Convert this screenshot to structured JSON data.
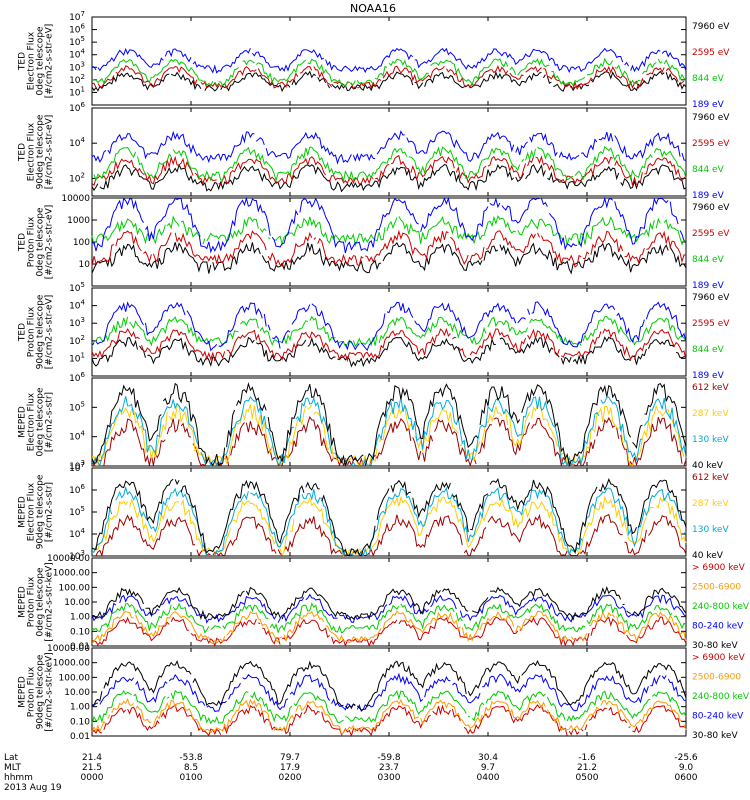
{
  "title": "NOAA16",
  "chart_data": {
    "type": "line",
    "title": "NOAA16",
    "x_ticks": [
      "0000",
      "0100",
      "0200",
      "0300",
      "0400",
      "0500",
      "0600"
    ],
    "x_hours": [
      0,
      1,
      2,
      3,
      4,
      5,
      6
    ],
    "footer": {
      "row_labels": [
        "Lat",
        "MLT",
        "hhmm"
      ],
      "date": "2013 Aug 19",
      "lat": [
        "21.4",
        "-53.8",
        "79.7",
        "-59.8",
        "30.4",
        "-1.6",
        "-25.6"
      ],
      "mlt": [
        "21.5",
        "8.5",
        "17.9",
        "23.7",
        "9.7",
        "21.2",
        "9.0"
      ]
    },
    "panels": [
      {
        "ylabel": [
          "TED",
          "Electron Flux",
          "0deg telescope",
          "[#/cm2-s-str-eV]"
        ],
        "yscale": "log",
        "ylim": [
          1,
          10000000.0
        ],
        "yticks": [
          {
            "v": 10,
            "b": "10",
            "e": "1"
          },
          {
            "v": 100,
            "b": "10",
            "e": "2"
          },
          {
            "v": 1000,
            "b": "10",
            "e": "3"
          },
          {
            "v": 10000,
            "b": "10",
            "e": "4"
          },
          {
            "v": 100000,
            "b": "10",
            "e": "5"
          },
          {
            "v": 1000000,
            "b": "10",
            "e": "6"
          },
          {
            "v": 10000000,
            "b": "10",
            "e": "7"
          }
        ],
        "series": [
          {
            "name": "7960 eV",
            "color": "#000000",
            "base": 25,
            "peak": 300
          },
          {
            "name": "2595 eV",
            "color": "#cc0000",
            "base": 40,
            "peak": 800
          },
          {
            "name": "844 eV",
            "color": "#00cc00",
            "base": 60,
            "peak": 3000
          },
          {
            "name": "189 eV",
            "color": "#0000ff",
            "base": 800,
            "peak": 20000
          }
        ]
      },
      {
        "ylabel": [
          "TED",
          "Electron Flux",
          "90deg telescope",
          "[#/cm2-s-str-eV]"
        ],
        "yscale": "log",
        "ylim": [
          10,
          1000000.0
        ],
        "yticks": [
          {
            "v": 100,
            "b": "10",
            "e": "2"
          },
          {
            "v": 10000,
            "b": "10",
            "e": "4"
          },
          {
            "v": 1000000,
            "b": "10",
            "e": "6"
          }
        ],
        "series": [
          {
            "name": "7960 eV",
            "color": "#000000",
            "base": 40,
            "peak": 400
          },
          {
            "name": "2595 eV",
            "color": "#cc0000",
            "base": 80,
            "peak": 1200
          },
          {
            "name": "844 eV",
            "color": "#00cc00",
            "base": 150,
            "peak": 4000
          },
          {
            "name": "189 eV",
            "color": "#0000ff",
            "base": 1500,
            "peak": 30000
          }
        ]
      },
      {
        "ylabel": [
          "TED",
          "Proton Flux",
          "0deg telescope",
          "[#/cm2-s-str-eV]"
        ],
        "yscale": "log",
        "ylim": [
          1,
          10000
        ],
        "yticks": [
          {
            "v": 10,
            "t": "10"
          },
          {
            "v": 100,
            "t": "100"
          },
          {
            "v": 1000,
            "t": "1000"
          },
          {
            "v": 10000,
            "t": "10000"
          }
        ],
        "series": [
          {
            "name": "7960 eV",
            "color": "#000000",
            "base": 8,
            "peak": 60
          },
          {
            "name": "2595 eV",
            "color": "#cc0000",
            "base": 15,
            "peak": 200
          },
          {
            "name": "844 eV",
            "color": "#00cc00",
            "base": 150,
            "peak": 900
          },
          {
            "name": "189 eV",
            "color": "#0000ff",
            "base": 60,
            "peak": 8000
          }
        ]
      },
      {
        "ylabel": [
          "TED",
          "Proton Flux",
          "90deg telescope",
          "[#/cm2-s-str-eV]"
        ],
        "yscale": "log",
        "ylim": [
          1,
          100000.0
        ],
        "yticks": [
          {
            "v": 10,
            "b": "10",
            "e": "1"
          },
          {
            "v": 100,
            "b": "10",
            "e": "2"
          },
          {
            "v": 1000,
            "b": "10",
            "e": "3"
          },
          {
            "v": 10000,
            "b": "10",
            "e": "4"
          },
          {
            "v": 100000,
            "b": "10",
            "e": "5"
          }
        ],
        "series": [
          {
            "name": "7960 eV",
            "color": "#000000",
            "base": 8,
            "peak": 100
          },
          {
            "name": "2595 eV",
            "color": "#cc0000",
            "base": 15,
            "peak": 300
          },
          {
            "name": "844 eV",
            "color": "#00cc00",
            "base": 100,
            "peak": 1500
          },
          {
            "name": "189 eV",
            "color": "#0000ff",
            "base": 60,
            "peak": 10000
          }
        ]
      },
      {
        "ylabel": [
          "MEPED",
          "Electron Flux",
          "0deg telescope",
          "[#/cm2-s-str]"
        ],
        "yscale": "log",
        "ylim": [
          1000,
          1000000.0
        ],
        "yticks": [
          {
            "v": 1000,
            "b": "10",
            "e": "3"
          },
          {
            "v": 10000,
            "b": "10",
            "e": "4"
          },
          {
            "v": 100000,
            "b": "10",
            "e": "5"
          },
          {
            "v": 1000000,
            "b": "10",
            "e": "6"
          }
        ],
        "series": [
          {
            "name": "612 keV",
            "color": "#a00000",
            "base": 1100,
            "peak": 30000
          },
          {
            "name": "287 keV",
            "color": "#ffcc00",
            "base": 1400,
            "peak": 80000
          },
          {
            "name": "130 keV",
            "color": "#00aadd",
            "base": 1200,
            "peak": 150000
          },
          {
            "name": "40 keV",
            "color": "#000000",
            "base": 1500,
            "peak": 400000
          }
        ]
      },
      {
        "ylabel": [
          "MEPED",
          "Electron Flux",
          "90deg telescope",
          "[#/cm2-s-str]"
        ],
        "yscale": "log",
        "ylim": [
          1000,
          10000000.0
        ],
        "yticks": [
          {
            "v": 1000,
            "b": "10",
            "e": "3"
          },
          {
            "v": 10000,
            "b": "10",
            "e": "4"
          },
          {
            "v": 100000,
            "b": "10",
            "e": "5"
          },
          {
            "v": 1000000,
            "b": "10",
            "e": "6"
          },
          {
            "v": 10000000,
            "b": "10",
            "e": "7"
          }
        ],
        "series": [
          {
            "name": "612 keV",
            "color": "#a00000",
            "base": 1100,
            "peak": 50000
          },
          {
            "name": "287 keV",
            "color": "#ffcc00",
            "base": 1400,
            "peak": 300000
          },
          {
            "name": "130 keV",
            "color": "#00aadd",
            "base": 1200,
            "peak": 800000
          },
          {
            "name": "40 keV",
            "color": "#000000",
            "base": 1500,
            "peak": 2000000
          }
        ]
      },
      {
        "ylabel": [
          "MEPED",
          "Proton Flux",
          "0deg telescope",
          "[#/cm2-s-str-keV]"
        ],
        "yscale": "log",
        "ylim": [
          0.01,
          10000
        ],
        "yticks": [
          {
            "v": 0.01,
            "t": "0.01"
          },
          {
            "v": 0.1,
            "t": "0.10"
          },
          {
            "v": 1,
            "t": "1.00"
          },
          {
            "v": 10,
            "t": "10.00"
          },
          {
            "v": 100,
            "t": "100.00"
          },
          {
            "v": 1000,
            "t": "1000.00"
          },
          {
            "v": 10000,
            "t": "10000.00"
          }
        ],
        "series": [
          {
            "name": "> 6900 keV",
            "color": "#cc0000",
            "base": 0.02,
            "peak": 0.6
          },
          {
            "name": "2500-6900",
            "color": "#ff9900",
            "base": 0.03,
            "peak": 1.5
          },
          {
            "name": "240-800 keV",
            "color": "#00cc00",
            "base": 0.15,
            "peak": 5
          },
          {
            "name": "80-240 keV",
            "color": "#0000ff",
            "base": 0.8,
            "peak": 20
          },
          {
            "name": "30-80 keV",
            "color": "#000000",
            "base": 1.2,
            "peak": 60
          }
        ]
      },
      {
        "ylabel": [
          "MEPED",
          "Proton Flux",
          "90deg telescope",
          "[#/cm2-s-str-keV]"
        ],
        "yscale": "log",
        "ylim": [
          0.01,
          10000
        ],
        "yticks": [
          {
            "v": 0.01,
            "t": "0.01"
          },
          {
            "v": 0.1,
            "t": "0.10"
          },
          {
            "v": 1,
            "t": "1.00"
          },
          {
            "v": 10,
            "t": "10.00"
          },
          {
            "v": 100,
            "t": "100.00"
          },
          {
            "v": 1000,
            "t": "1000.00"
          },
          {
            "v": 10000,
            "t": "10000.00"
          }
        ],
        "series": [
          {
            "name": "> 6900 keV",
            "color": "#cc0000",
            "base": 0.02,
            "peak": 0.8
          },
          {
            "name": "2500-6900",
            "color": "#ff9900",
            "base": 0.03,
            "peak": 2
          },
          {
            "name": "240-800 keV",
            "color": "#00cc00",
            "base": 0.15,
            "peak": 8
          },
          {
            "name": "80-240 keV",
            "color": "#0000ff",
            "base": 1,
            "peak": 100
          },
          {
            "name": "30-80 keV",
            "color": "#000000",
            "base": 1.2,
            "peak": 800
          }
        ]
      }
    ]
  }
}
